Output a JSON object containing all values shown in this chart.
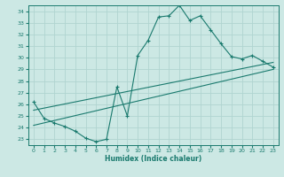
{
  "xlabel": "Humidex (Indice chaleur)",
  "background_color": "#cce8e4",
  "grid_color": "#b0d4d0",
  "line_color": "#1a7a6e",
  "xlim": [
    -0.5,
    23.5
  ],
  "ylim": [
    22.5,
    34.5
  ],
  "xticks": [
    0,
    1,
    2,
    3,
    4,
    5,
    6,
    7,
    8,
    9,
    10,
    11,
    12,
    13,
    14,
    15,
    16,
    17,
    18,
    19,
    20,
    21,
    22,
    23
  ],
  "yticks": [
    23,
    24,
    25,
    26,
    27,
    28,
    29,
    30,
    31,
    32,
    33,
    34
  ],
  "curve1_x": [
    0,
    1,
    2,
    3,
    4,
    5,
    6,
    7,
    8,
    9,
    10,
    11,
    12,
    13,
    14,
    15,
    16,
    17,
    18,
    19,
    20,
    21,
    22,
    23
  ],
  "curve1_y": [
    26.2,
    24.8,
    24.4,
    24.1,
    23.7,
    23.1,
    22.8,
    23.0,
    27.5,
    25.0,
    30.2,
    31.5,
    33.5,
    33.6,
    34.5,
    33.2,
    33.6,
    32.4,
    31.2,
    30.1,
    29.9,
    30.2,
    29.7,
    29.2
  ],
  "curve2_x": [
    0,
    23
  ],
  "curve2_y": [
    24.2,
    29.0
  ],
  "curve3_x": [
    0,
    23
  ],
  "curve3_y": [
    25.5,
    29.6
  ],
  "marker": "+"
}
